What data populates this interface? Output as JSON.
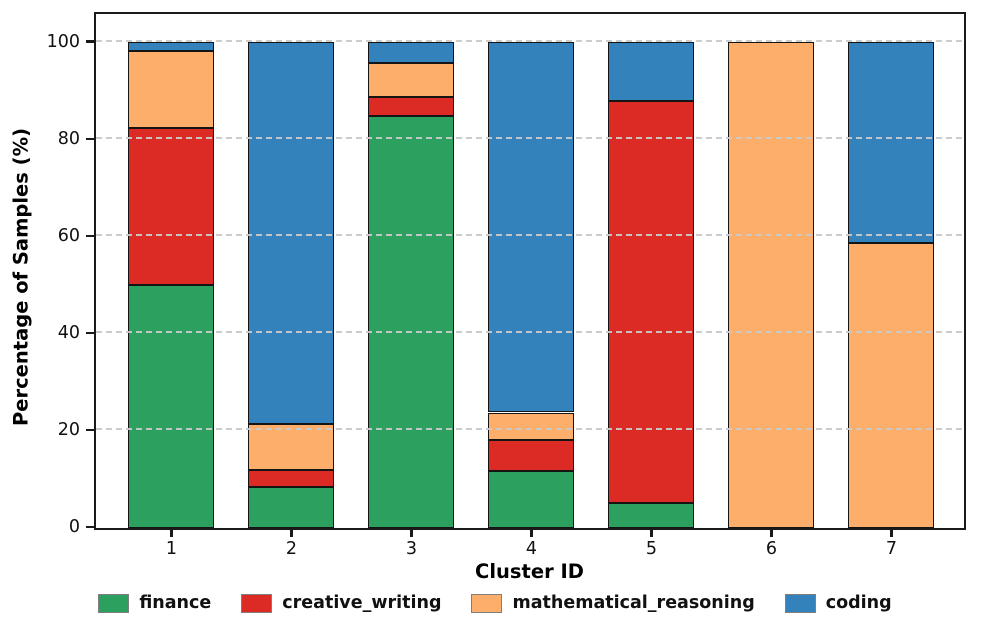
{
  "chart_data": {
    "type": "bar",
    "stacked": true,
    "title": "",
    "xlabel": "Cluster ID",
    "ylabel": "Percentage of Samples (%)",
    "categories": [
      "1",
      "2",
      "3",
      "4",
      "5",
      "6",
      "7"
    ],
    "series": [
      {
        "name": "finance",
        "color": "#2ca05f",
        "values": [
          50.0,
          8.4,
          84.7,
          11.6,
          5.0,
          0,
          0
        ]
      },
      {
        "name": "creative_writing",
        "color": "#dc2b25",
        "values": [
          32.3,
          3.5,
          4.0,
          6.5,
          82.9,
          0,
          0
        ]
      },
      {
        "name": "mathematical_reasoning",
        "color": "#fdae6b",
        "values": [
          15.8,
          9.4,
          7.1,
          5.6,
          0,
          100.0,
          58.7
        ]
      },
      {
        "name": "coding",
        "color": "#3482bc",
        "values": [
          1.9,
          78.7,
          4.2,
          76.3,
          12.1,
          0,
          41.3
        ]
      }
    ],
    "ylim": [
      0,
      105.7
    ],
    "yticks": [
      0,
      20,
      40,
      60,
      80,
      100
    ],
    "grid": "dashed horizontal, drawn above bars",
    "legend_position": "bottom",
    "colors": {
      "axis_spine": "#1a1a1a",
      "gridline": "#c9c9c9",
      "bar_edge": "#141414",
      "legend_swatch_edge": "#7f7f7f",
      "background": "#ffffff"
    }
  }
}
